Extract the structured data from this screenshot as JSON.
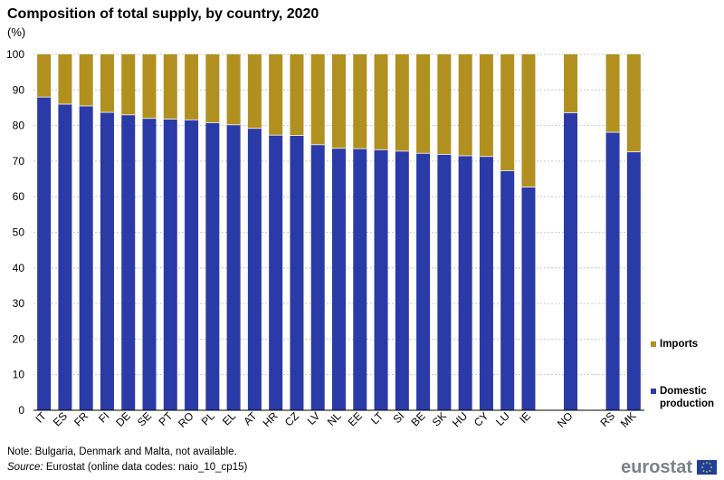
{
  "title": "Composition of total supply, by country, 2020",
  "unit": "(%)",
  "note": "Note: Bulgaria, Denmark and Malta, not available.",
  "source_label": "Source:",
  "source_text": " Eurostat (online data codes: naio_10_cp15)",
  "logo_text": "eurostat",
  "colors": {
    "domestic": "#2a3aa7",
    "imports": "#b1901f",
    "grid": "#bfbfbf",
    "axis": "#000000"
  },
  "chart_data": {
    "type": "bar",
    "stacked": true,
    "categories": [
      "IT",
      "ES",
      "FR",
      "FI",
      "DE",
      "SE",
      "PT",
      "RO",
      "PL",
      "EL",
      "AT",
      "HR",
      "CZ",
      "LV",
      "NL",
      "EE",
      "LT",
      "SI",
      "BE",
      "SK",
      "HU",
      "CY",
      "LU",
      "IE",
      "",
      "NO",
      "",
      "RS",
      "MK"
    ],
    "series": [
      {
        "name": "Domestic production",
        "values": [
          88,
          86,
          85.5,
          83.7,
          83,
          82,
          81.8,
          81.6,
          80.8,
          80.2,
          79.2,
          77.3,
          77.2,
          74.6,
          73.6,
          73.5,
          73.2,
          72.8,
          72.2,
          71.9,
          71.5,
          71.3,
          67.3,
          62.7,
          null,
          83.6,
          null,
          78.1,
          72.6
        ]
      },
      {
        "name": "Imports",
        "values": [
          12,
          14,
          14.5,
          16.3,
          17,
          18,
          18.2,
          18.4,
          19.2,
          19.8,
          20.8,
          22.7,
          22.8,
          25.4,
          26.4,
          26.5,
          26.8,
          27.2,
          27.8,
          28.1,
          28.5,
          28.7,
          32.7,
          37.3,
          null,
          16.4,
          null,
          21.9,
          27.4
        ]
      }
    ],
    "ylim": [
      0,
      100
    ],
    "yticks": [
      0,
      10,
      20,
      30,
      40,
      50,
      60,
      70,
      80,
      90,
      100
    ],
    "grid": true,
    "legend_position": "right",
    "legend": [
      "Imports",
      "Domestic production"
    ]
  }
}
